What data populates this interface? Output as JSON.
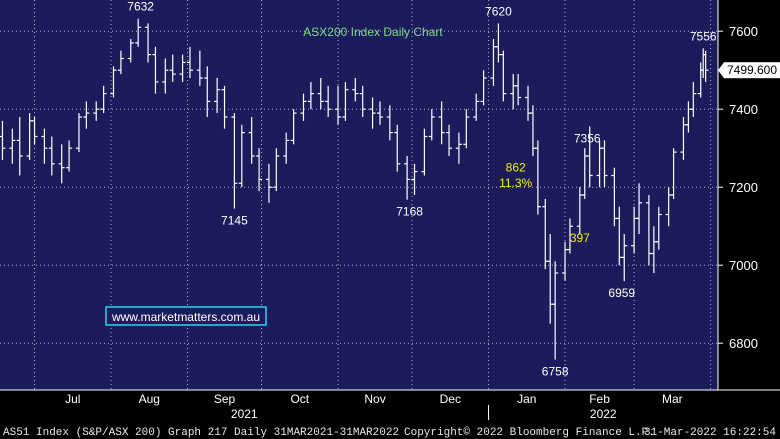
{
  "chart_data": {
    "type": "ohlc",
    "title": "ASX200 Index Daily Chart",
    "xlabel": "",
    "ylabel": "",
    "ylim": [
      6680,
      7680
    ],
    "yticks": [
      6800,
      7000,
      7200,
      7400,
      7600
    ],
    "last_price": "7499.600",
    "grid": true,
    "colors": {
      "background": "#1c1c5c",
      "bars": "#ffffff",
      "grid": "#b0b0c8",
      "title": "#7ddc8a",
      "yellow_annotation": "#f2f20a",
      "watermark_border": "#2bd4e8",
      "footer_bg": "#000000",
      "axis_text": "#ffffff"
    },
    "x_month_labels": [
      "Jul",
      "Aug",
      "Sep",
      "Oct",
      "Nov",
      "Dec",
      "Jan",
      "Feb",
      "Mar"
    ],
    "x_year_labels": [
      "2021",
      "2022"
    ],
    "annotations": [
      {
        "text": "7632",
        "x": "2021-08-13",
        "y": 7632
      },
      {
        "text": "7145",
        "x": "2021-09-20",
        "y": 7145
      },
      {
        "text": "7168",
        "x": "2021-11-30",
        "y": 7168
      },
      {
        "text": "7620",
        "x": "2022-01-05",
        "y": 7620
      },
      {
        "text": "6758",
        "x": "2022-01-28",
        "y": 6758
      },
      {
        "text": "7356",
        "x": "2022-02-10",
        "y": 7356
      },
      {
        "text": "6959",
        "x": "2022-02-24",
        "y": 6959
      },
      {
        "text": "7556",
        "x": "2022-03-29",
        "y": 7556
      }
    ],
    "yellow_annotations": [
      {
        "text": "862",
        "x": "2022-01-12",
        "y": 7240
      },
      {
        "text": "11.3%",
        "x": "2022-01-12",
        "y": 7200
      },
      {
        "text": "397",
        "x": "2022-02-07",
        "y": 7060
      }
    ],
    "series": [
      {
        "name": "S&P/ASX 200",
        "values": [
          {
            "d": "2021-06-18",
            "o": 7330,
            "h": 7370,
            "l": 7270,
            "c": 7300
          },
          {
            "d": "2021-06-22",
            "o": 7300,
            "h": 7350,
            "l": 7260,
            "c": 7320
          },
          {
            "d": "2021-06-25",
            "o": 7320,
            "h": 7380,
            "l": 7230,
            "c": 7280
          },
          {
            "d": "2021-06-29",
            "o": 7280,
            "h": 7390,
            "l": 7270,
            "c": 7370
          },
          {
            "d": "2021-07-01",
            "o": 7370,
            "h": 7380,
            "l": 7310,
            "c": 7330
          },
          {
            "d": "2021-07-05",
            "o": 7330,
            "h": 7350,
            "l": 7260,
            "c": 7300
          },
          {
            "d": "2021-07-08",
            "o": 7300,
            "h": 7330,
            "l": 7230,
            "c": 7260
          },
          {
            "d": "2021-07-12",
            "o": 7260,
            "h": 7310,
            "l": 7210,
            "c": 7250
          },
          {
            "d": "2021-07-15",
            "o": 7250,
            "h": 7320,
            "l": 7240,
            "c": 7300
          },
          {
            "d": "2021-07-19",
            "o": 7300,
            "h": 7390,
            "l": 7290,
            "c": 7380
          },
          {
            "d": "2021-07-22",
            "o": 7380,
            "h": 7420,
            "l": 7350,
            "c": 7390
          },
          {
            "d": "2021-07-26",
            "o": 7390,
            "h": 7420,
            "l": 7370,
            "c": 7400
          },
          {
            "d": "2021-07-29",
            "o": 7400,
            "h": 7460,
            "l": 7390,
            "c": 7440
          },
          {
            "d": "2021-08-02",
            "o": 7440,
            "h": 7510,
            "l": 7430,
            "c": 7500
          },
          {
            "d": "2021-08-05",
            "o": 7500,
            "h": 7550,
            "l": 7490,
            "c": 7530
          },
          {
            "d": "2021-08-09",
            "o": 7530,
            "h": 7580,
            "l": 7520,
            "c": 7570
          },
          {
            "d": "2021-08-12",
            "o": 7570,
            "h": 7632,
            "l": 7560,
            "c": 7610
          },
          {
            "d": "2021-08-16",
            "o": 7610,
            "h": 7620,
            "l": 7520,
            "c": 7540
          },
          {
            "d": "2021-08-19",
            "o": 7540,
            "h": 7560,
            "l": 7440,
            "c": 7470
          },
          {
            "d": "2021-08-23",
            "o": 7470,
            "h": 7530,
            "l": 7440,
            "c": 7500
          },
          {
            "d": "2021-08-26",
            "o": 7500,
            "h": 7540,
            "l": 7470,
            "c": 7490
          },
          {
            "d": "2021-08-30",
            "o": 7490,
            "h": 7540,
            "l": 7470,
            "c": 7520
          },
          {
            "d": "2021-09-02",
            "o": 7520,
            "h": 7560,
            "l": 7480,
            "c": 7500
          },
          {
            "d": "2021-09-06",
            "o": 7500,
            "h": 7550,
            "l": 7460,
            "c": 7480
          },
          {
            "d": "2021-09-09",
            "o": 7480,
            "h": 7510,
            "l": 7380,
            "c": 7420
          },
          {
            "d": "2021-09-13",
            "o": 7420,
            "h": 7480,
            "l": 7390,
            "c": 7450
          },
          {
            "d": "2021-09-16",
            "o": 7450,
            "h": 7460,
            "l": 7350,
            "c": 7380
          },
          {
            "d": "2021-09-20",
            "o": 7380,
            "h": 7390,
            "l": 7145,
            "c": 7210
          },
          {
            "d": "2021-09-23",
            "o": 7210,
            "h": 7360,
            "l": 7200,
            "c": 7340
          },
          {
            "d": "2021-09-27",
            "o": 7340,
            "h": 7380,
            "l": 7260,
            "c": 7280
          },
          {
            "d": "2021-09-30",
            "o": 7280,
            "h": 7300,
            "l": 7190,
            "c": 7220
          },
          {
            "d": "2021-10-04",
            "o": 7220,
            "h": 7260,
            "l": 7160,
            "c": 7200
          },
          {
            "d": "2021-10-07",
            "o": 7200,
            "h": 7300,
            "l": 7190,
            "c": 7280
          },
          {
            "d": "2021-10-11",
            "o": 7280,
            "h": 7340,
            "l": 7260,
            "c": 7320
          },
          {
            "d": "2021-10-14",
            "o": 7320,
            "h": 7400,
            "l": 7310,
            "c": 7390
          },
          {
            "d": "2021-10-18",
            "o": 7390,
            "h": 7440,
            "l": 7370,
            "c": 7420
          },
          {
            "d": "2021-10-21",
            "o": 7420,
            "h": 7470,
            "l": 7400,
            "c": 7440
          },
          {
            "d": "2021-10-25",
            "o": 7440,
            "h": 7480,
            "l": 7400,
            "c": 7420
          },
          {
            "d": "2021-10-28",
            "o": 7420,
            "h": 7460,
            "l": 7380,
            "c": 7400
          },
          {
            "d": "2021-11-01",
            "o": 7400,
            "h": 7460,
            "l": 7360,
            "c": 7380
          },
          {
            "d": "2021-11-04",
            "o": 7380,
            "h": 7470,
            "l": 7370,
            "c": 7450
          },
          {
            "d": "2021-11-08",
            "o": 7450,
            "h": 7480,
            "l": 7420,
            "c": 7440
          },
          {
            "d": "2021-11-11",
            "o": 7440,
            "h": 7460,
            "l": 7380,
            "c": 7400
          },
          {
            "d": "2021-11-15",
            "o": 7400,
            "h": 7430,
            "l": 7350,
            "c": 7390
          },
          {
            "d": "2021-11-18",
            "o": 7390,
            "h": 7420,
            "l": 7360,
            "c": 7380
          },
          {
            "d": "2021-11-22",
            "o": 7380,
            "h": 7410,
            "l": 7320,
            "c": 7340
          },
          {
            "d": "2021-11-25",
            "o": 7340,
            "h": 7360,
            "l": 7240,
            "c": 7260
          },
          {
            "d": "2021-11-29",
            "o": 7260,
            "h": 7280,
            "l": 7168,
            "c": 7220
          },
          {
            "d": "2021-12-02",
            "o": 7220,
            "h": 7260,
            "l": 7180,
            "c": 7240
          },
          {
            "d": "2021-12-06",
            "o": 7240,
            "h": 7350,
            "l": 7230,
            "c": 7330
          },
          {
            "d": "2021-12-09",
            "o": 7330,
            "h": 7400,
            "l": 7320,
            "c": 7380
          },
          {
            "d": "2021-12-13",
            "o": 7380,
            "h": 7420,
            "l": 7310,
            "c": 7340
          },
          {
            "d": "2021-12-16",
            "o": 7340,
            "h": 7360,
            "l": 7280,
            "c": 7300
          },
          {
            "d": "2021-12-20",
            "o": 7300,
            "h": 7340,
            "l": 7260,
            "c": 7310
          },
          {
            "d": "2021-12-23",
            "o": 7310,
            "h": 7400,
            "l": 7300,
            "c": 7380
          },
          {
            "d": "2021-12-27",
            "o": 7380,
            "h": 7440,
            "l": 7370,
            "c": 7420
          },
          {
            "d": "2021-12-30",
            "o": 7420,
            "h": 7500,
            "l": 7410,
            "c": 7480
          },
          {
            "d": "2022-01-03",
            "o": 7480,
            "h": 7580,
            "l": 7460,
            "c": 7560
          },
          {
            "d": "2022-01-05",
            "o": 7560,
            "h": 7620,
            "l": 7520,
            "c": 7540
          },
          {
            "d": "2022-01-07",
            "o": 7540,
            "h": 7550,
            "l": 7420,
            "c": 7440
          },
          {
            "d": "2022-01-11",
            "o": 7440,
            "h": 7490,
            "l": 7400,
            "c": 7460
          },
          {
            "d": "2022-01-13",
            "o": 7460,
            "h": 7490,
            "l": 7410,
            "c": 7430
          },
          {
            "d": "2022-01-17",
            "o": 7430,
            "h": 7460,
            "l": 7370,
            "c": 7390
          },
          {
            "d": "2022-01-19",
            "o": 7390,
            "h": 7410,
            "l": 7280,
            "c": 7300
          },
          {
            "d": "2022-01-21",
            "o": 7300,
            "h": 7320,
            "l": 7130,
            "c": 7150
          },
          {
            "d": "2022-01-24",
            "o": 7150,
            "h": 7170,
            "l": 6990,
            "c": 7010
          },
          {
            "d": "2022-01-26",
            "o": 7010,
            "h": 7080,
            "l": 6850,
            "c": 6900
          },
          {
            "d": "2022-01-28",
            "o": 6900,
            "h": 7010,
            "l": 6758,
            "c": 6980
          },
          {
            "d": "2022-02-01",
            "o": 6980,
            "h": 7060,
            "l": 6960,
            "c": 7040
          },
          {
            "d": "2022-02-03",
            "o": 7040,
            "h": 7120,
            "l": 7030,
            "c": 7100
          },
          {
            "d": "2022-02-07",
            "o": 7100,
            "h": 7200,
            "l": 7080,
            "c": 7180
          },
          {
            "d": "2022-02-09",
            "o": 7180,
            "h": 7300,
            "l": 7170,
            "c": 7280
          },
          {
            "d": "2022-02-11",
            "o": 7280,
            "h": 7356,
            "l": 7200,
            "c": 7230
          },
          {
            "d": "2022-02-15",
            "o": 7230,
            "h": 7320,
            "l": 7200,
            "c": 7300
          },
          {
            "d": "2022-02-17",
            "o": 7300,
            "h": 7320,
            "l": 7200,
            "c": 7230
          },
          {
            "d": "2022-02-21",
            "o": 7230,
            "h": 7250,
            "l": 7100,
            "c": 7120
          },
          {
            "d": "2022-02-23",
            "o": 7120,
            "h": 7150,
            "l": 7000,
            "c": 7020
          },
          {
            "d": "2022-02-25",
            "o": 7020,
            "h": 7080,
            "l": 6959,
            "c": 7050
          },
          {
            "d": "2022-03-01",
            "o": 7050,
            "h": 7150,
            "l": 7030,
            "c": 7120
          },
          {
            "d": "2022-03-03",
            "o": 7120,
            "h": 7210,
            "l": 7080,
            "c": 7160
          },
          {
            "d": "2022-03-07",
            "o": 7160,
            "h": 7180,
            "l": 7000,
            "c": 7030
          },
          {
            "d": "2022-03-09",
            "o": 7030,
            "h": 7100,
            "l": 6980,
            "c": 7060
          },
          {
            "d": "2022-03-11",
            "o": 7060,
            "h": 7150,
            "l": 7040,
            "c": 7130
          },
          {
            "d": "2022-03-15",
            "o": 7130,
            "h": 7200,
            "l": 7100,
            "c": 7180
          },
          {
            "d": "2022-03-17",
            "o": 7180,
            "h": 7300,
            "l": 7170,
            "c": 7290
          },
          {
            "d": "2022-03-21",
            "o": 7290,
            "h": 7380,
            "l": 7270,
            "c": 7360
          },
          {
            "d": "2022-03-23",
            "o": 7360,
            "h": 7420,
            "l": 7340,
            "c": 7400
          },
          {
            "d": "2022-03-25",
            "o": 7400,
            "h": 7470,
            "l": 7380,
            "c": 7440
          },
          {
            "d": "2022-03-28",
            "o": 7440,
            "h": 7520,
            "l": 7430,
            "c": 7500
          },
          {
            "d": "2022-03-29",
            "o": 7500,
            "h": 7556,
            "l": 7480,
            "c": 7540
          },
          {
            "d": "2022-03-30",
            "o": 7540,
            "h": 7550,
            "l": 7470,
            "c": 7500
          }
        ]
      }
    ]
  },
  "watermark": "www.marketmatters.com.au",
  "footer": {
    "left": "AS51 Index (S&P/ASX 200) Graph 217  Daily 31MAR2021-31MAR2022",
    "center": "Copyright© 2022 Bloomberg Finance L.P.",
    "right": "31-Mar-2022 16:22:54"
  }
}
